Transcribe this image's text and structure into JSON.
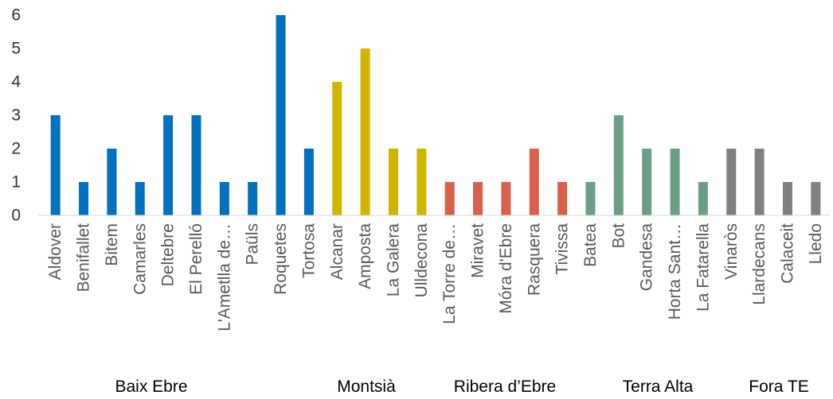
{
  "chart_data": {
    "type": "bar",
    "title": "",
    "xlabel": "",
    "ylabel": "",
    "ylim": [
      0,
      6
    ],
    "yticks": [
      0,
      1,
      2,
      3,
      4,
      5,
      6
    ],
    "grid": false,
    "legend": "none",
    "categories": [
      "Aldover",
      "Benifallet",
      "Bitem",
      "Camarles",
      "Deltebre",
      "El Perelló",
      "L'Ametlla de…",
      "Paüls",
      "Roquetes",
      "Tortosa",
      "Alcanar",
      "Amposta",
      "La Galera",
      "Ulldecona",
      "La Torre de…",
      "Miravet",
      "Móra d'Ebre",
      "Rasquera",
      "Tivissa",
      "Batea",
      "Bot",
      "Gandesa",
      "Horta Sant…",
      "La Fatarella",
      "Vinaròs",
      "Llardecans",
      "Calaceit",
      "Lledo"
    ],
    "values": [
      3,
      1,
      2,
      1,
      3,
      3,
      1,
      1,
      6,
      2,
      4,
      5,
      2,
      2,
      1,
      1,
      1,
      2,
      1,
      1,
      3,
      2,
      2,
      1,
      2,
      2,
      1,
      1
    ],
    "groups": [
      {
        "name": "Baix Ebre",
        "count": 10,
        "color": "#0070C0"
      },
      {
        "name": "Montsià",
        "count": 4,
        "color": "#CFB400"
      },
      {
        "name": "Ribera d’Ebre",
        "count": 5,
        "color": "#D9604A"
      },
      {
        "name": "Terra Alta",
        "count": 5,
        "color": "#6A9F86"
      },
      {
        "name": "Fora TE",
        "count": 4,
        "color": "#808080"
      }
    ]
  }
}
